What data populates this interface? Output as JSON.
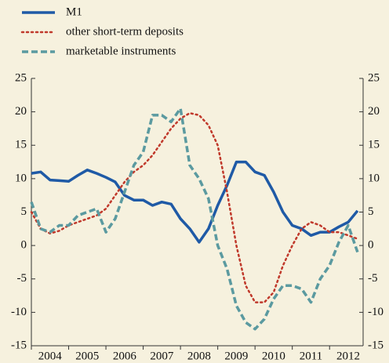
{
  "chart_data": {
    "type": "line",
    "x": [
      2004,
      2004.25,
      2004.5,
      2004.75,
      2005,
      2005.25,
      2005.5,
      2005.75,
      2006,
      2006.25,
      2006.5,
      2006.75,
      2007,
      2007.25,
      2007.5,
      2007.75,
      2008,
      2008.25,
      2008.5,
      2008.75,
      2009,
      2009.25,
      2009.5,
      2009.75,
      2010,
      2010.25,
      2010.5,
      2010.75,
      2011,
      2011.25,
      2011.5,
      2011.75,
      2012,
      2012.25,
      2012.5,
      2012.75
    ],
    "series": [
      {
        "name": "M1",
        "color": "#1f5aa6",
        "dash": "solid",
        "values": [
          10.8,
          11.0,
          9.8,
          9.7,
          9.6,
          10.5,
          11.3,
          10.8,
          10.2,
          9.5,
          7.5,
          6.8,
          6.8,
          6.0,
          6.5,
          6.2,
          4.0,
          2.5,
          0.5,
          2.5,
          6.0,
          9.0,
          12.5,
          12.5,
          11.0,
          10.5,
          8.0,
          5.0,
          3.0,
          2.5,
          1.5,
          2.0,
          2.0,
          2.8,
          3.5,
          5.2
        ]
      },
      {
        "name": "other short-term deposits",
        "color": "#c0392b",
        "dash": "dotted",
        "values": [
          5.0,
          2.5,
          1.8,
          2.2,
          3.0,
          3.5,
          4.0,
          4.5,
          5.5,
          7.5,
          9.5,
          11.0,
          12.0,
          13.5,
          15.5,
          17.5,
          19.0,
          19.8,
          19.5,
          18.0,
          15.0,
          8.0,
          0.0,
          -6.0,
          -8.5,
          -8.5,
          -7.0,
          -3.0,
          0.0,
          2.5,
          3.5,
          3.0,
          2.0,
          2.0,
          1.5,
          1.0
        ]
      },
      {
        "name": "marketable instruments",
        "color": "#5b9aa0",
        "dash": "dashed",
        "values": [
          6.5,
          2.5,
          2.0,
          3.0,
          3.0,
          4.5,
          5.0,
          5.5,
          2.0,
          4.0,
          8.0,
          12.0,
          14.0,
          19.5,
          19.5,
          18.5,
          20.5,
          12.0,
          10.0,
          7.0,
          0.0,
          -3.5,
          -9.0,
          -11.5,
          -12.5,
          -11.0,
          -8.0,
          -6.0,
          -6.0,
          -6.5,
          -8.5,
          -5.0,
          -3.0,
          0.5,
          3.0,
          -1.0
        ]
      }
    ],
    "xlim": [
      2004,
      2012.9
    ],
    "xticks": [
      {
        "value": 2004,
        "label": "2004"
      },
      {
        "value": 2005,
        "label": "2005"
      },
      {
        "value": 2006,
        "label": "2006"
      },
      {
        "value": 2007,
        "label": "2007"
      },
      {
        "value": 2008,
        "label": "2008"
      },
      {
        "value": 2009,
        "label": "2009"
      },
      {
        "value": 2010,
        "label": "2010"
      },
      {
        "value": 2011,
        "label": "2011"
      },
      {
        "value": 2012,
        "label": "2012"
      }
    ],
    "ylim": [
      -15,
      25
    ],
    "yticks": [
      -15,
      -10,
      -5,
      0,
      5,
      10,
      15,
      20,
      25
    ],
    "y2lim": [
      -15,
      25
    ],
    "y2ticks": [
      -15,
      -10,
      -5,
      0,
      5,
      10,
      15,
      20,
      25
    ],
    "legend": "top-left",
    "background": "#f6f1de"
  }
}
